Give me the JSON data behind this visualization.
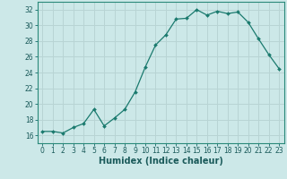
{
  "x": [
    0,
    1,
    2,
    3,
    4,
    5,
    6,
    7,
    8,
    9,
    10,
    11,
    12,
    13,
    14,
    15,
    16,
    17,
    18,
    19,
    20,
    21,
    22,
    23
  ],
  "y": [
    16.5,
    16.5,
    16.3,
    17.0,
    17.5,
    19.3,
    17.2,
    18.2,
    19.3,
    21.5,
    24.7,
    27.5,
    28.8,
    30.8,
    30.9,
    32.0,
    31.3,
    31.8,
    31.5,
    31.7,
    30.4,
    28.3,
    26.3,
    24.5
  ],
  "line_color": "#1a7a6e",
  "marker_color": "#1a7a6e",
  "bg_color": "#cce8e8",
  "grid_color": "#b8d4d4",
  "xlabel": "Humidex (Indice chaleur)",
  "ylim": [
    15,
    33
  ],
  "xlim": [
    -0.5,
    23.5
  ],
  "yticks": [
    16,
    18,
    20,
    22,
    24,
    26,
    28,
    30,
    32
  ],
  "xticks": [
    0,
    1,
    2,
    3,
    4,
    5,
    6,
    7,
    8,
    9,
    10,
    11,
    12,
    13,
    14,
    15,
    16,
    17,
    18,
    19,
    20,
    21,
    22,
    23
  ],
  "tick_fontsize": 5.5,
  "xlabel_fontsize": 7.0
}
